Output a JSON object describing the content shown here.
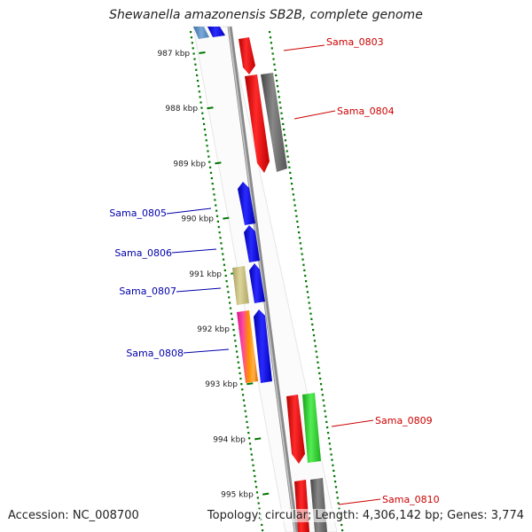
{
  "title": "Shewanella amazonensis SB2B, complete genome",
  "accession": "Accession: NC_008700",
  "summary": "Topology: circular; Length: 4,306,142 bp; Genes: 3,774",
  "colors": {
    "forward_label": "#cc0000",
    "reverse_label": "#0000aa",
    "ruler": "#007700",
    "backbone": "#8a8a8a"
  },
  "ticks": [
    {
      "label": "987 kbp",
      "kbp": 987
    },
    {
      "label": "988 kbp",
      "kbp": 988
    },
    {
      "label": "989 kbp",
      "kbp": 989
    },
    {
      "label": "990 kbp",
      "kbp": 990
    },
    {
      "label": "991 kbp",
      "kbp": 991
    },
    {
      "label": "992 kbp",
      "kbp": 992
    },
    {
      "label": "993 kbp",
      "kbp": 993
    },
    {
      "label": "994 kbp",
      "kbp": 994
    },
    {
      "label": "995 kbp",
      "kbp": 995
    }
  ],
  "gene_labels": [
    {
      "name": "Sama_0803",
      "strand": "forward"
    },
    {
      "name": "Sama_0804",
      "strand": "forward"
    },
    {
      "name": "Sama_0805",
      "strand": "reverse"
    },
    {
      "name": "Sama_0806",
      "strand": "reverse"
    },
    {
      "name": "Sama_0807",
      "strand": "reverse"
    },
    {
      "name": "Sama_0808",
      "strand": "reverse"
    },
    {
      "name": "Sama_0809",
      "strand": "forward"
    },
    {
      "name": "Sama_0810",
      "strand": "forward"
    }
  ]
}
